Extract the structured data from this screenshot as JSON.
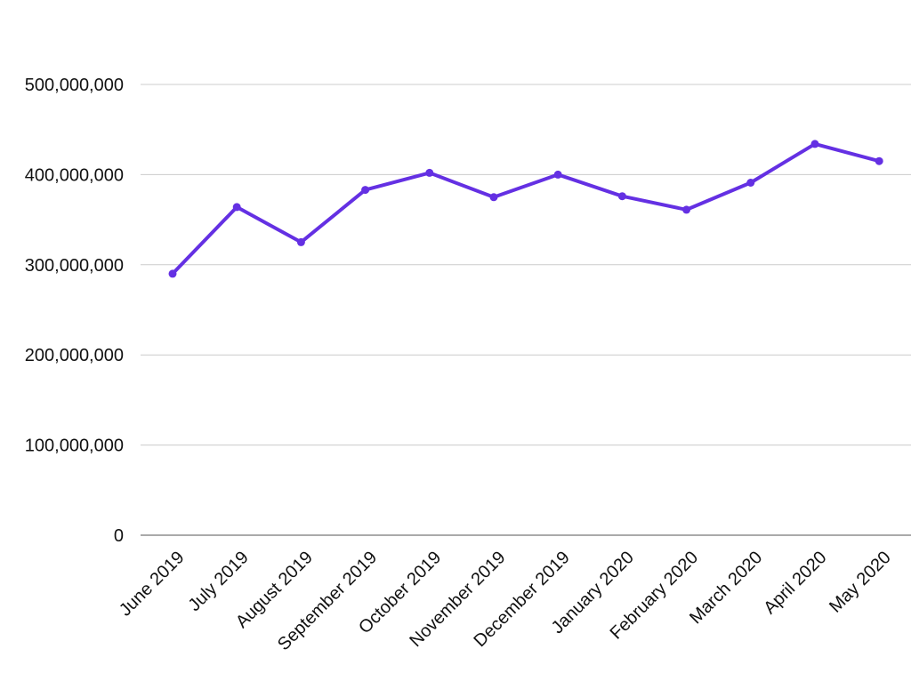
{
  "chart_data": {
    "type": "line",
    "title": "",
    "xlabel": "",
    "ylabel": "",
    "categories": [
      "June 2019",
      "July 2019",
      "August 2019",
      "September 2019",
      "October 2019",
      "November 2019",
      "December 2019",
      "January 2020",
      "February 2020",
      "March 2020",
      "April 2020",
      "May 2020"
    ],
    "series": [
      {
        "values": [
          290000000,
          364000000,
          325000000,
          383000000,
          402000000,
          375000000,
          400000000,
          376000000,
          361000000,
          391000000,
          434000000,
          415000000
        ],
        "color": "#6430e3"
      }
    ],
    "ylim": [
      0,
      500000000
    ],
    "yticks": [
      0,
      100000000,
      200000000,
      300000000,
      400000000,
      500000000
    ],
    "ytick_labels": [
      "0",
      "100,000,000",
      "200,000,000",
      "300,000,000",
      "400,000,000",
      "500,000,000"
    ],
    "grid": true,
    "gridline_color": "#cccccc",
    "legend": "none"
  }
}
